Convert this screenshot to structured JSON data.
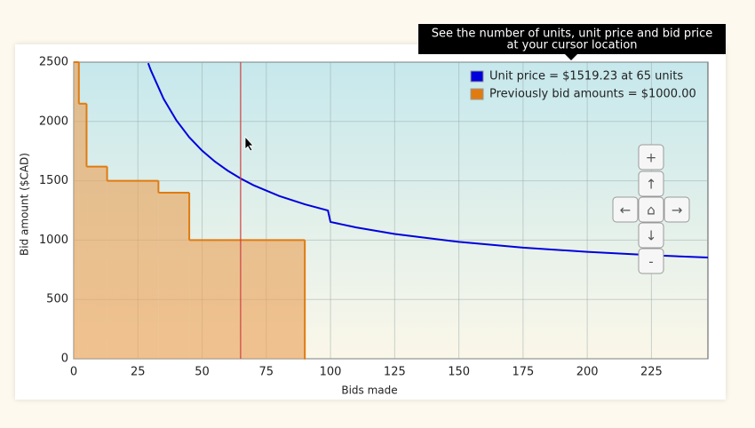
{
  "chart_data": {
    "type": "line",
    "xlabel": "Bids made",
    "ylabel": "Bid amount ($CAD)",
    "xlim": [
      0,
      247
    ],
    "ylim": [
      0,
      2500
    ],
    "xticks": [
      0,
      25,
      50,
      75,
      100,
      125,
      150,
      175,
      200,
      225
    ],
    "yticks": [
      0,
      500,
      1000,
      1500,
      2000,
      2500
    ],
    "grid": true,
    "legend": "upper right",
    "cursor_x": 65,
    "series": [
      {
        "name": "Unit price = $1519.23 at 65 units",
        "color": "#0000dd",
        "kind": "line",
        "x": [
          29,
          30,
          35,
          40,
          45,
          50,
          55,
          60,
          65,
          70,
          80,
          90,
          99,
          100,
          110,
          125,
          150,
          175,
          200,
          225,
          247
        ],
        "values": [
          2491,
          2433,
          2191,
          2009,
          1867,
          1754,
          1662,
          1585,
          1519.23,
          1463,
          1372,
          1302,
          1250,
          1153,
          1107,
          1052,
          985,
          937,
          901,
          873,
          853
        ]
      },
      {
        "name": "Previously bid amounts = $1000.00",
        "color": "#e07b10",
        "kind": "step",
        "x": [
          0,
          2,
          5,
          13,
          33,
          45,
          90
        ],
        "values": [
          2500,
          2150,
          1620,
          1500,
          1400,
          1000,
          0
        ]
      }
    ]
  },
  "tooltip": [
    "See the number of units, unit price and bid price",
    "at your cursor location"
  ],
  "nav_buttons": [
    "+",
    "↑",
    "←",
    "⌂",
    "→",
    "↓",
    "-"
  ]
}
